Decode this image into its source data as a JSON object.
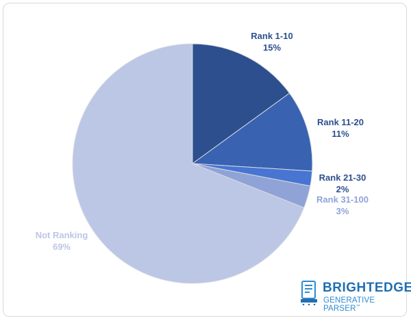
{
  "chart_data": {
    "type": "pie",
    "slices": [
      {
        "label": "Rank 1-10",
        "value": 15,
        "value_label": "15%",
        "color": "#2d4f8e",
        "label_color": "#2d4f8e"
      },
      {
        "label": "Rank 11-20",
        "value": 11,
        "value_label": "11%",
        "color": "#3962b1",
        "label_color": "#2d4f8e"
      },
      {
        "label": "Rank 21-30",
        "value": 2,
        "value_label": "2%",
        "color": "#4775d1",
        "label_color": "#2d4f8e"
      },
      {
        "label": "Rank 31-100",
        "value": 3,
        "value_label": "3%",
        "color": "#8fa3d6",
        "label_color": "#8fa3d6"
      },
      {
        "label": "Not Ranking",
        "value": 69,
        "value_label": "69%",
        "color": "#bcc6e5",
        "label_color": "#bcc6e5"
      }
    ],
    "start_angle": "12 o'clock",
    "direction": "clockwise"
  },
  "logo": {
    "brand": "BRIGHTEDGE",
    "subtitle": "GENERATIVE PARSER",
    "trademark": "™",
    "brand_color": "#1f6fb2",
    "subtitle_color": "#2a8bd1"
  }
}
